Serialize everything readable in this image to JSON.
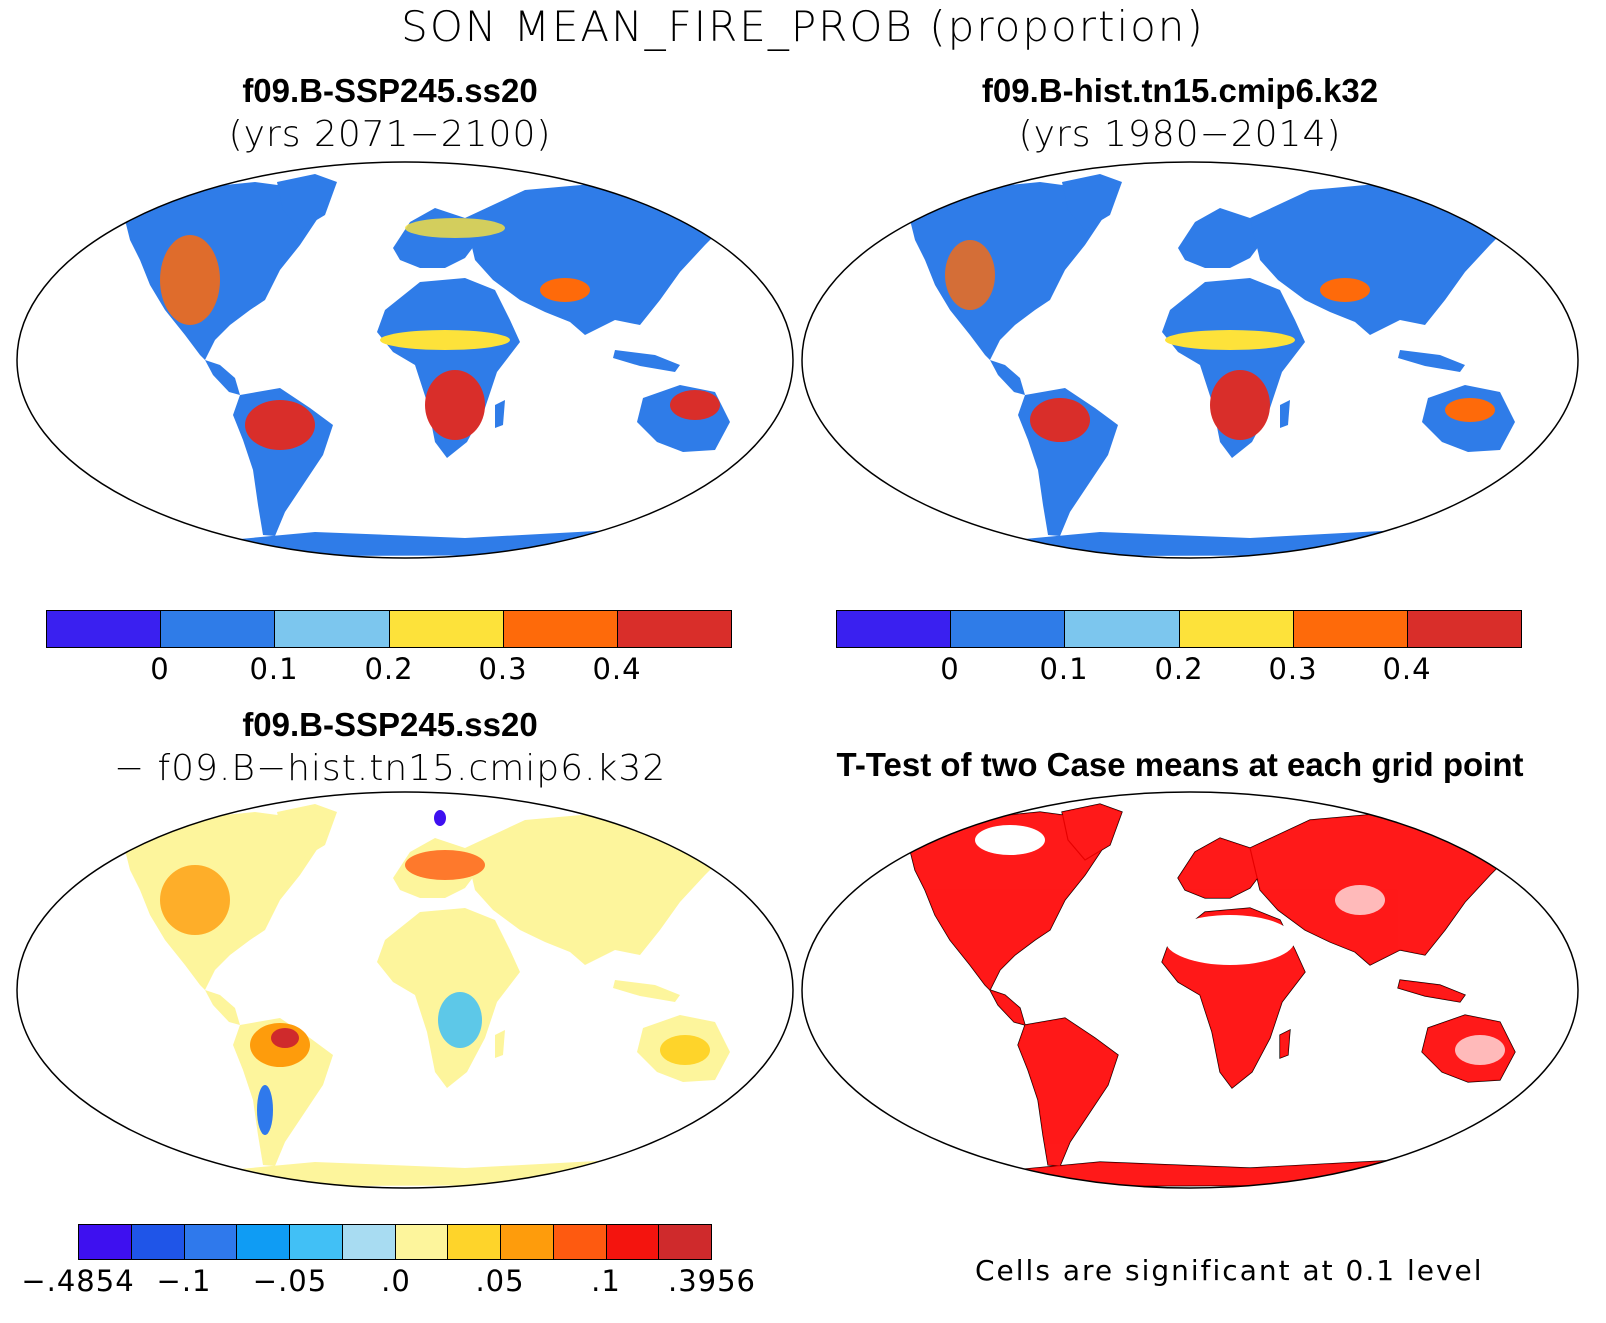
{
  "main_title": "SON MEAN_FIRE_PROB (proportion)",
  "panels": {
    "top_left": {
      "title_line1": "f09.B-SSP245.ss20",
      "title_line2": "(yrs 2071−2100)"
    },
    "top_right": {
      "title_line1": "f09.B-hist.tn15.cmip6.k32",
      "title_line2": "(yrs 1980−2014)"
    },
    "bottom_left": {
      "title_line1": "f09.B-SSP245.ss20",
      "title_line2": "− f09.B−hist.tn15.cmip6.k32"
    },
    "bottom_right": {
      "title_line1": "T-Test of two Case means at each grid point",
      "note": "Cells are significant at 0.1 level"
    }
  },
  "colorbar_mean": {
    "colors": [
      "#3a20f0",
      "#2f7ce8",
      "#7cc6ee",
      "#fde23a",
      "#fe6a0a",
      "#d92e2a"
    ],
    "labels": [
      "0",
      "0.1",
      "0.2",
      "0.3",
      "0.4"
    ]
  },
  "colorbar_diff": {
    "colors": [
      "#3e10f0",
      "#1f55e8",
      "#2f79ec",
      "#0f9cf4",
      "#41c0f6",
      "#a8dcf2",
      "#fdf59c",
      "#fed42a",
      "#fe9c0c",
      "#fe5a10",
      "#f4140e",
      "#cf2a2c"
    ],
    "labels": [
      "−.4854",
      "−.1",
      "−.05",
      ".0",
      ".05",
      ".1",
      ".3956"
    ]
  },
  "map_colors": {
    "ttest_significant": "#ff0000",
    "outline": "#000000"
  }
}
